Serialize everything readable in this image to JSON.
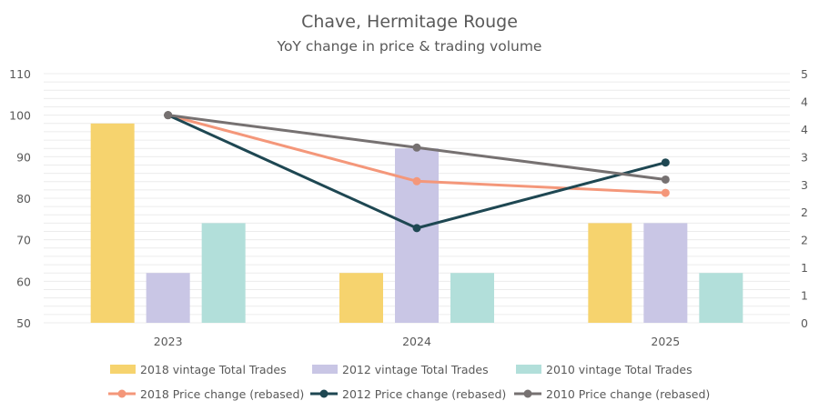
{
  "chart_data": {
    "type": "bar",
    "title": "Chave, Hermitage Rouge",
    "subtitle": "YoY change in price & trading volume",
    "categories": [
      "2023",
      "2024",
      "2025"
    ],
    "y_left": {
      "ylim": [
        50,
        110
      ],
      "ticks": [
        "110",
        "100",
        "90",
        "80",
        "70",
        "60",
        "50"
      ]
    },
    "y_right": {
      "ylim": [
        0,
        5
      ],
      "ticks": [
        "5",
        "4",
        "4",
        "3",
        "3",
        "2",
        "2",
        "1",
        "1",
        "0"
      ]
    },
    "grid": true,
    "legend_position": "bottom",
    "bar_series": [
      {
        "name": "2018 vintage Total Trades",
        "color": "#F6D36E",
        "values": [
          4,
          1,
          2
        ]
      },
      {
        "name": "2012 vintage Total Trades",
        "color": "#C9C6E5",
        "values": [
          1,
          3.5,
          2
        ]
      },
      {
        "name": "2010 vintage Total  Trades",
        "color": "#B2DFDA",
        "values": [
          2,
          1,
          1
        ]
      }
    ],
    "line_series": [
      {
        "name": "2018 Price change (rebased)",
        "color": "#F4977A",
        "values": [
          100,
          84.1,
          81.3
        ]
      },
      {
        "name": "2012 Price change (rebased)",
        "color": "#1E4752",
        "values": [
          100,
          72.8,
          88.6
        ]
      },
      {
        "name": "2010 Price change (rebased)",
        "color": "#767171",
        "values": [
          100,
          92.2,
          84.5
        ]
      }
    ]
  }
}
